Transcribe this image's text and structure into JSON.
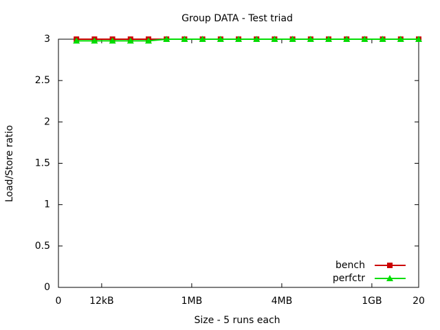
{
  "chart_data": {
    "type": "line",
    "title": "Group DATA - Test triad",
    "xlabel": "Size - 5 runs each",
    "ylabel": "Load/Store ratio",
    "x": [
      1,
      2,
      3,
      4,
      5,
      6,
      7,
      8,
      9,
      10,
      11,
      12,
      13,
      14,
      15,
      16,
      17,
      18,
      19,
      20
    ],
    "series": [
      {
        "name": "bench",
        "color": "#cc0000",
        "marker": "square",
        "values": [
          3,
          3,
          3,
          3,
          3,
          3,
          3,
          3,
          3,
          3,
          3,
          3,
          3,
          3,
          3,
          3,
          3,
          3,
          3,
          3
        ]
      },
      {
        "name": "perfctr",
        "color": "#00dd00",
        "marker": "triangle",
        "values": [
          2.98,
          2.98,
          2.98,
          2.98,
          2.98,
          3,
          3,
          3,
          3,
          3,
          3,
          3,
          3,
          3,
          3,
          3,
          3,
          3,
          3,
          3
        ]
      }
    ],
    "xlim": [
      0,
      20
    ],
    "xticks": [
      0,
      {
        "value": 2.4,
        "label": "12kB"
      },
      {
        "value": 7.4,
        "label": "1MB"
      },
      {
        "value": 12.4,
        "label": "4MB"
      },
      {
        "value": 17.4,
        "label": "1GB"
      },
      20
    ],
    "ylim": [
      0,
      3
    ],
    "yticks": [
      0,
      0.5,
      1,
      1.5,
      2,
      2.5,
      3
    ],
    "legend": "bottom-right"
  }
}
